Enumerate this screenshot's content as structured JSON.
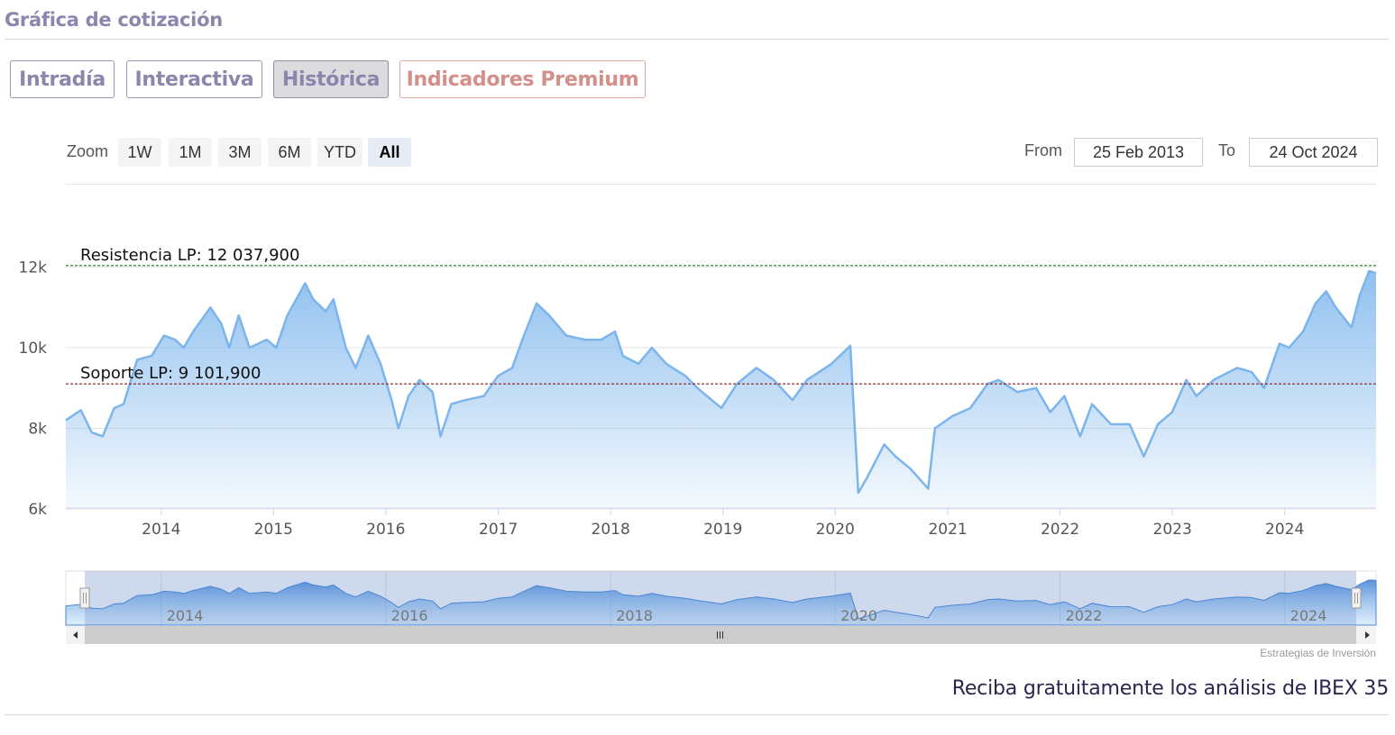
{
  "section_title": "Gráfica de cotización",
  "tabs": [
    {
      "label": "Intradía",
      "active": false
    },
    {
      "label": "Interactiva",
      "active": false
    },
    {
      "label": "Histórica",
      "active": true
    },
    {
      "label": "Indicadores Premium",
      "active": false
    }
  ],
  "toolbar": {
    "zoom_label": "Zoom",
    "zoom_buttons": [
      "1W",
      "1M",
      "3M",
      "6M",
      "YTD",
      "All"
    ],
    "zoom_selected": "All",
    "from_label": "From",
    "from_value": "25 Feb 2013",
    "to_label": "To",
    "to_value": "24 Oct 2024"
  },
  "credits": "Estrategias de Inversión",
  "promo_text": "Reciba gratuitamente los análisis de IBEX 35",
  "colors": {
    "accent": "#8b86ad",
    "premium": "#d48f8b",
    "series_line": "#7cb5ec",
    "resistance": "#1a7a1a",
    "support": "#8b1a1a"
  },
  "chart_data": {
    "type": "area",
    "ylim": [
      6000,
      12400
    ],
    "xlim": [
      "2013-02-25",
      "2024-10-24"
    ],
    "y_ticks": [
      {
        "v": 6000,
        "label": "6k"
      },
      {
        "v": 8000,
        "label": "8k"
      },
      {
        "v": 10000,
        "label": "10k"
      },
      {
        "v": 12000,
        "label": "12k"
      }
    ],
    "x_ticks": [
      "2014",
      "2015",
      "2016",
      "2017",
      "2018",
      "2019",
      "2020",
      "2021",
      "2022",
      "2023",
      "2024"
    ],
    "navigator_ticks": [
      "2014",
      "2016",
      "2018",
      "2020",
      "2022",
      "2024"
    ],
    "plot_lines": [
      {
        "label": "Resistencia LP: 12 037,900",
        "value": 12037.9,
        "color": "#1a7a1a"
      },
      {
        "label": "Soporte LP: 9 101,900",
        "value": 9101.9,
        "color": "#8b1a1a"
      }
    ],
    "series": [
      {
        "values": [
          [
            "2013-02-25",
            8200
          ],
          [
            "2013-04-15",
            8450
          ],
          [
            "2013-05-20",
            7900
          ],
          [
            "2013-06-25",
            7800
          ],
          [
            "2013-08-01",
            8500
          ],
          [
            "2013-09-01",
            8600
          ],
          [
            "2013-10-15",
            9700
          ],
          [
            "2013-12-01",
            9800
          ],
          [
            "2014-01-10",
            10300
          ],
          [
            "2014-02-15",
            10200
          ],
          [
            "2014-03-15",
            10000
          ],
          [
            "2014-04-15",
            10400
          ],
          [
            "2014-06-10",
            11000
          ],
          [
            "2014-07-15",
            10600
          ],
          [
            "2014-08-10",
            10000
          ],
          [
            "2014-09-10",
            10800
          ],
          [
            "2014-10-15",
            10000
          ],
          [
            "2014-12-10",
            10200
          ],
          [
            "2015-01-10",
            10000
          ],
          [
            "2015-02-15",
            10800
          ],
          [
            "2015-04-14",
            11600
          ],
          [
            "2015-05-10",
            11200
          ],
          [
            "2015-06-20",
            10900
          ],
          [
            "2015-07-15",
            11200
          ],
          [
            "2015-08-24",
            10000
          ],
          [
            "2015-09-25",
            9500
          ],
          [
            "2015-11-05",
            10300
          ],
          [
            "2015-12-15",
            9600
          ],
          [
            "2016-01-20",
            8700
          ],
          [
            "2016-02-11",
            8000
          ],
          [
            "2016-03-15",
            8800
          ],
          [
            "2016-04-20",
            9200
          ],
          [
            "2016-06-01",
            8900
          ],
          [
            "2016-06-27",
            7800
          ],
          [
            "2016-08-01",
            8600
          ],
          [
            "2016-09-15",
            8700
          ],
          [
            "2016-11-15",
            8800
          ],
          [
            "2016-12-31",
            9300
          ],
          [
            "2017-02-15",
            9500
          ],
          [
            "2017-03-20",
            10200
          ],
          [
            "2017-05-05",
            11100
          ],
          [
            "2017-06-15",
            10800
          ],
          [
            "2017-08-10",
            10300
          ],
          [
            "2017-10-10",
            10200
          ],
          [
            "2017-12-01",
            10200
          ],
          [
            "2018-01-15",
            10400
          ],
          [
            "2018-02-10",
            9800
          ],
          [
            "2018-04-01",
            9600
          ],
          [
            "2018-05-15",
            10000
          ],
          [
            "2018-07-01",
            9600
          ],
          [
            "2018-09-01",
            9300
          ],
          [
            "2018-10-10",
            9000
          ],
          [
            "2018-12-27",
            8500
          ],
          [
            "2019-02-15",
            9100
          ],
          [
            "2019-04-20",
            9500
          ],
          [
            "2019-06-15",
            9200
          ],
          [
            "2019-08-15",
            8700
          ],
          [
            "2019-10-01",
            9200
          ],
          [
            "2019-11-10",
            9400
          ],
          [
            "2019-12-20",
            9600
          ],
          [
            "2020-02-19",
            10050
          ],
          [
            "2020-03-16",
            6400
          ],
          [
            "2020-04-15",
            6800
          ],
          [
            "2020-06-08",
            7600
          ],
          [
            "2020-07-15",
            7300
          ],
          [
            "2020-09-01",
            7000
          ],
          [
            "2020-10-29",
            6500
          ],
          [
            "2020-11-20",
            8000
          ],
          [
            "2021-01-15",
            8300
          ],
          [
            "2021-03-15",
            8500
          ],
          [
            "2021-05-10",
            9100
          ],
          [
            "2021-06-15",
            9200
          ],
          [
            "2021-08-15",
            8900
          ],
          [
            "2021-10-15",
            9000
          ],
          [
            "2021-11-30",
            8400
          ],
          [
            "2022-01-15",
            8800
          ],
          [
            "2022-03-07",
            7800
          ],
          [
            "2022-04-15",
            8600
          ],
          [
            "2022-06-15",
            8100
          ],
          [
            "2022-08-15",
            8100
          ],
          [
            "2022-09-30",
            7300
          ],
          [
            "2022-11-15",
            8100
          ],
          [
            "2022-12-31",
            8400
          ],
          [
            "2023-02-15",
            9200
          ],
          [
            "2023-03-20",
            8800
          ],
          [
            "2023-05-15",
            9200
          ],
          [
            "2023-07-31",
            9500
          ],
          [
            "2023-09-15",
            9400
          ],
          [
            "2023-10-26",
            9000
          ],
          [
            "2023-12-15",
            10100
          ],
          [
            "2024-01-15",
            10000
          ],
          [
            "2024-03-01",
            10400
          ],
          [
            "2024-04-10",
            11100
          ],
          [
            "2024-05-15",
            11400
          ],
          [
            "2024-06-15",
            11000
          ],
          [
            "2024-08-05",
            10500
          ],
          [
            "2024-09-01",
            11300
          ],
          [
            "2024-10-01",
            11900
          ],
          [
            "2024-10-24",
            11850
          ]
        ]
      }
    ]
  }
}
